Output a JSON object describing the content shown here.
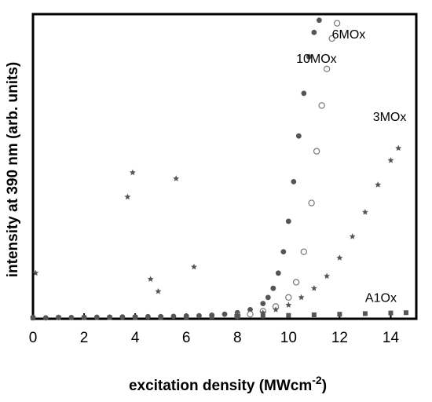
{
  "chart_data": {
    "type": "scatter",
    "title": "",
    "xlabel": "excitation density (MWcm",
    "xlabel_superscript": "-2",
    "xlabel_close": ")",
    "ylabel": "intensity at 390 nm (arb. units)",
    "xlim": [
      0,
      15
    ],
    "ylim": [
      0,
      1
    ],
    "xticks": [
      0,
      2,
      4,
      6,
      8,
      10,
      12,
      14
    ],
    "ytick_labels_shown": false,
    "grid": false,
    "legend": "none (series labeled inline)",
    "series": [
      {
        "name": "10MOx",
        "marker": "filled-circle",
        "color": "#555555",
        "label_at": [
          10.3,
          0.84
        ],
        "x": [
          0.0,
          0.5,
          1.0,
          1.5,
          2.0,
          2.5,
          3.0,
          3.5,
          4.0,
          4.5,
          5.0,
          5.5,
          6.0,
          6.5,
          7.0,
          7.5,
          8.0,
          8.5,
          9.0,
          9.2,
          9.4,
          9.6,
          9.8,
          10.0,
          10.2,
          10.4,
          10.6,
          10.8,
          11.0,
          11.2
        ],
        "y": [
          0.003,
          0.003,
          0.004,
          0.004,
          0.004,
          0.005,
          0.005,
          0.006,
          0.006,
          0.007,
          0.007,
          0.008,
          0.009,
          0.01,
          0.012,
          0.015,
          0.02,
          0.03,
          0.05,
          0.07,
          0.1,
          0.15,
          0.22,
          0.32,
          0.45,
          0.6,
          0.74,
          0.86,
          0.94,
          0.98
        ]
      },
      {
        "name": "6MOx",
        "marker": "open-circle",
        "color": "#777777",
        "label_at": [
          11.7,
          0.92
        ],
        "x": [
          8.0,
          8.5,
          9.0,
          9.5,
          10.0,
          10.3,
          10.6,
          10.9,
          11.1,
          11.3,
          11.5,
          11.7,
          11.9
        ],
        "y": [
          0.01,
          0.015,
          0.025,
          0.04,
          0.07,
          0.12,
          0.22,
          0.38,
          0.55,
          0.7,
          0.82,
          0.92,
          0.97
        ]
      },
      {
        "name": "3MOx",
        "marker": "star",
        "color": "#555555",
        "label_at": [
          13.3,
          0.65
        ],
        "x": [
          0.0,
          1.0,
          2.0,
          3.0,
          4.0,
          5.0,
          6.0,
          7.0,
          8.0,
          9.0,
          9.5,
          10.0,
          10.5,
          11.0,
          11.5,
          12.0,
          12.5,
          13.0,
          13.5,
          14.0,
          14.3
        ],
        "y": [
          0.004,
          0.004,
          0.004,
          0.005,
          0.005,
          0.006,
          0.006,
          0.008,
          0.012,
          0.02,
          0.03,
          0.045,
          0.07,
          0.1,
          0.14,
          0.2,
          0.27,
          0.35,
          0.44,
          0.52,
          0.56
        ]
      },
      {
        "name": "A1Ox",
        "marker": "filled-square",
        "color": "#555555",
        "label_at": [
          13.0,
          0.055
        ],
        "x": [
          0.0,
          1.0,
          2.0,
          3.0,
          4.0,
          5.0,
          6.0,
          7.0,
          8.0,
          9.0,
          10.0,
          11.0,
          12.0,
          13.0,
          14.0,
          14.6
        ],
        "y": [
          0.003,
          0.004,
          0.004,
          0.004,
          0.005,
          0.005,
          0.006,
          0.007,
          0.008,
          0.009,
          0.011,
          0.013,
          0.015,
          0.017,
          0.019,
          0.02
        ]
      },
      {
        "name": "",
        "marker": "star",
        "color": "#555555",
        "x": [
          0.1,
          3.7,
          3.9,
          4.6,
          4.9,
          5.6,
          6.3
        ],
        "y": [
          0.15,
          0.4,
          0.48,
          0.13,
          0.09,
          0.46,
          0.17
        ]
      }
    ]
  }
}
